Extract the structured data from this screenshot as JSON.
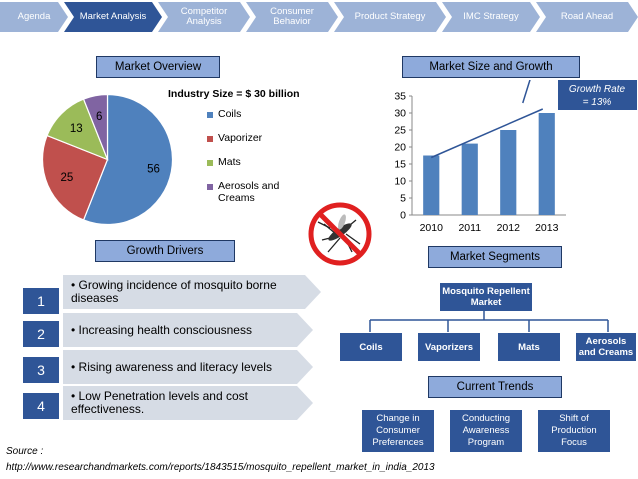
{
  "nav": [
    {
      "label": "Agenda",
      "active": false
    },
    {
      "label": "Market Analysis",
      "active": true
    },
    {
      "label": "Competitor Analysis",
      "active": false
    },
    {
      "label": "Consumer Behavior",
      "active": false
    },
    {
      "label": "Product Strategy",
      "active": false
    },
    {
      "label": "IMC Strategy",
      "active": false
    },
    {
      "label": "Road Ahead",
      "active": false
    }
  ],
  "market_overview": {
    "header": "Market Overview",
    "industry_size": "Industry Size = $ 30 billion"
  },
  "market_size": {
    "header": "Market Size and Growth",
    "growth_callout": "Growth Rate = 13%"
  },
  "growth_drivers": {
    "header": "Growth Drivers",
    "items": [
      {
        "num": "1",
        "text": "• Growing incidence of mosquito borne diseases"
      },
      {
        "num": "2",
        "text": "• Increasing health consciousness"
      },
      {
        "num": "3",
        "text": "• Rising awareness and literacy levels"
      },
      {
        "num": "4",
        "text": "• Low Penetration levels and cost effectiveness."
      }
    ]
  },
  "market_segments": {
    "header": "Market Segments",
    "root": "Mosquito Repellent Market",
    "children": [
      "Coils",
      "Vaporizers",
      "Mats",
      "Aerosols and Creams"
    ]
  },
  "current_trends": {
    "header": "Current Trends",
    "items": [
      "Change in Consumer Preferences",
      "Conducting Awareness Program",
      "Shift of Production Focus"
    ]
  },
  "source": {
    "label": "Source :",
    "url": "http://www.researchandmarkets.com/reports/1843515/mosquito_repellent_market_in_india_2013"
  },
  "colors": {
    "accent": "#2f5597",
    "nav_inactive": "#9db3d7",
    "header_fill": "#8eaadb",
    "driver_fill": "#d6dce5"
  },
  "icons": {
    "no_mosquito": "no-mosquito-icon"
  },
  "chart_data": [
    {
      "type": "pie",
      "categories": [
        "Coils",
        "Vaporizer",
        "Mats",
        "Aerosols and Creams"
      ],
      "values": [
        56,
        25,
        13,
        6
      ],
      "colors": [
        "#4f81bd",
        "#c0504d",
        "#9bbb59",
        "#8064a2"
      ],
      "legend": "right"
    },
    {
      "type": "bar",
      "categories": [
        "2010",
        "2011",
        "2012",
        "2013"
      ],
      "values": [
        17.5,
        21,
        25,
        30
      ],
      "ylim": [
        0,
        35
      ],
      "yticks": [
        0,
        5,
        10,
        15,
        20,
        25,
        30,
        35
      ],
      "grid": false,
      "color": "#4f81bd"
    }
  ]
}
